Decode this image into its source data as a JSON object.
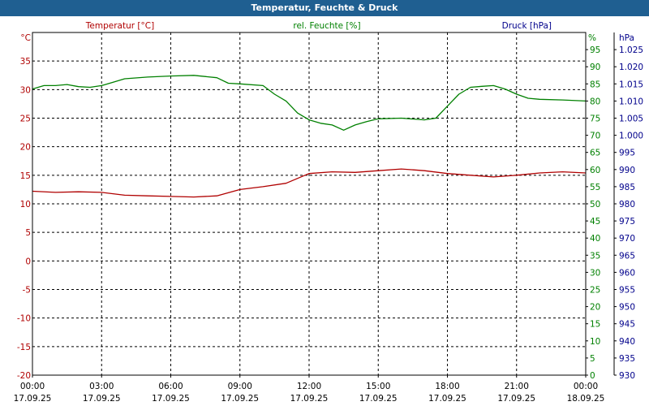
{
  "window": {
    "title": "Temperatur, Feuchte & Druck"
  },
  "colors": {
    "temperature": "#b00000",
    "humidity": "#008000",
    "pressure": "#00008b",
    "titlebar": "#1f5f91",
    "grid": "#000000"
  },
  "chart_data": {
    "type": "line",
    "title": "Temperatur, Feuchte & Druck",
    "grid": true,
    "x_ticks": [
      {
        "time": "00:00",
        "date": "17.09.25"
      },
      {
        "time": "03:00",
        "date": "17.09.25"
      },
      {
        "time": "06:00",
        "date": "17.09.25"
      },
      {
        "time": "09:00",
        "date": "17.09.25"
      },
      {
        "time": "12:00",
        "date": "17.09.25"
      },
      {
        "time": "15:00",
        "date": "17.09.25"
      },
      {
        "time": "18:00",
        "date": "17.09.25"
      },
      {
        "time": "21:00",
        "date": "17.09.25"
      },
      {
        "time": "00:00",
        "date": "18.09.25"
      }
    ],
    "axes": {
      "temperature": {
        "label": "Temperatur [°C]",
        "unit": "°C",
        "min": -20,
        "max": 40,
        "ticks": [
          "35",
          "30",
          "25",
          "20",
          "15",
          "10",
          "5",
          "0",
          "-5",
          "-10",
          "-15",
          "-20"
        ]
      },
      "humidity": {
        "label": "rel. Feuchte [%]",
        "unit": "%",
        "min": 0,
        "max": 100,
        "ticks": [
          "95",
          "90",
          "85",
          "80",
          "75",
          "70",
          "65",
          "60",
          "55",
          "50",
          "45",
          "40",
          "35",
          "30",
          "25",
          "20",
          "15",
          "10",
          "5",
          "0"
        ]
      },
      "pressure": {
        "label": "Druck [hPa]",
        "unit": "hPa",
        "min": 930,
        "max": 1030,
        "ticks": [
          "1.025",
          "1.020",
          "1.015",
          "1.010",
          "1.005",
          "1.000",
          "995",
          "990",
          "985",
          "980",
          "975",
          "970",
          "965",
          "960",
          "955",
          "950",
          "945",
          "940",
          "935",
          "930"
        ]
      }
    },
    "series": [
      {
        "name": "Temperatur [°C]",
        "axis": "temperature",
        "hours": [
          0,
          1,
          2,
          3,
          4,
          5,
          6,
          7,
          8,
          9,
          10,
          11,
          12,
          13,
          14,
          15,
          16,
          17,
          18,
          19,
          20,
          21,
          22,
          23,
          24
        ],
        "values": [
          12.2,
          12.0,
          12.1,
          12.0,
          11.5,
          11.4,
          11.3,
          11.2,
          11.4,
          12.5,
          13.0,
          13.6,
          15.3,
          15.6,
          15.5,
          15.8,
          16.1,
          15.8,
          15.3,
          15.0,
          14.7,
          15.0,
          15.4,
          15.6,
          15.4
        ]
      },
      {
        "name": "rel. Feuchte [%]",
        "axis": "humidity",
        "hours": [
          0,
          0.5,
          1,
          1.5,
          2,
          2.5,
          3,
          3.5,
          4,
          5,
          6,
          7,
          8,
          8.5,
          9,
          10,
          10.5,
          11,
          11.5,
          12,
          12.5,
          13,
          13.5,
          14,
          14.5,
          15,
          16,
          17,
          17.5,
          18,
          18.5,
          19,
          19.5,
          20,
          20.5,
          21,
          21.5,
          22,
          23,
          24
        ],
        "values": [
          83.5,
          84.5,
          84.5,
          84.8,
          84.2,
          84.0,
          84.5,
          85.5,
          86.5,
          87.0,
          87.3,
          87.5,
          86.8,
          85.2,
          85.0,
          84.5,
          82.0,
          80.0,
          76.5,
          74.5,
          73.5,
          73.0,
          71.5,
          73.0,
          74.0,
          74.8,
          75.0,
          74.5,
          75.0,
          78.5,
          82.0,
          84.0,
          84.3,
          84.5,
          83.5,
          82.0,
          80.8,
          80.5,
          80.3,
          80.0
        ]
      }
    ]
  }
}
